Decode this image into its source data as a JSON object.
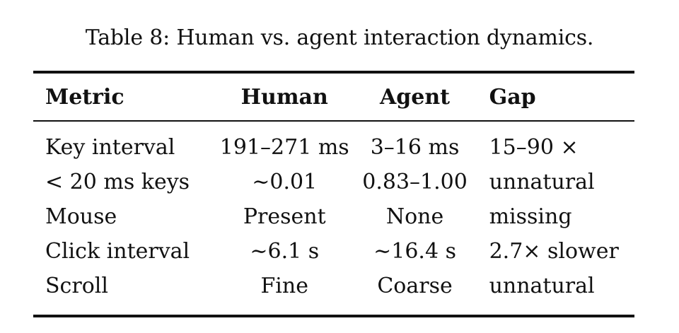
{
  "caption": "Table 8: Human vs. agent interaction dynamics.",
  "table": {
    "headers": [
      "Metric",
      "Human",
      "Agent",
      "Gap"
    ],
    "rows": [
      [
        "Key interval",
        "191–271 ms",
        "3–16 ms",
        "15–90 ×"
      ],
      [
        "< 20 ms keys",
        "∼0.01",
        "0.83–1.00",
        "unnatural"
      ],
      [
        "Mouse",
        "Present",
        "None",
        "missing"
      ],
      [
        "Click interval",
        "∼6.1 s",
        "∼16.4 s",
        "2.7× slower"
      ],
      [
        "Scroll",
        "Fine",
        "Coarse",
        "unnatural"
      ]
    ]
  }
}
